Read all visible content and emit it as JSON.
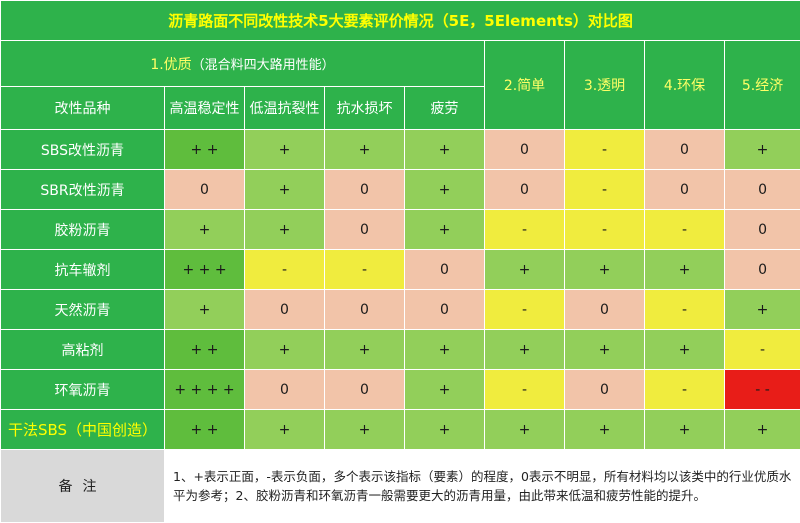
{
  "title": "沥青路面不同改性技术5大要素评价情况（5E，5Elements）对比图",
  "header": {
    "group_quality": "1.优质",
    "group_quality_sub": "（混合料四大路用性能）",
    "row_label": "改性品种",
    "cols": [
      "高温稳定性",
      "低温抗裂性",
      "抗水损坏",
      "疲劳"
    ],
    "simple": "2.简单",
    "transparent": "3.透明",
    "eco": "4.环保",
    "economy": "5.经济"
  },
  "rows": [
    {
      "name": "SBS改性沥青",
      "cells": [
        "+ +",
        "+",
        "+",
        "+",
        "0",
        "-",
        "0",
        "+"
      ]
    },
    {
      "name": "SBR改性沥青",
      "cells": [
        "0",
        "+",
        "0",
        "+",
        "0",
        "-",
        "0",
        "0"
      ]
    },
    {
      "name": "胶粉沥青",
      "cells": [
        "+",
        "+",
        "0",
        "+",
        "-",
        "-",
        "-",
        "0"
      ]
    },
    {
      "name": "抗车辙剂",
      "cells": [
        "+ + +",
        "-",
        "-",
        "0",
        "+",
        "+",
        "+",
        "0"
      ]
    },
    {
      "name": "天然沥青",
      "cells": [
        "+",
        "0",
        "0",
        "0",
        "-",
        "0",
        "-",
        "+"
      ]
    },
    {
      "name": "高粘剂",
      "cells": [
        "+ +",
        "+",
        "+",
        "+",
        "+",
        "+",
        "+",
        "-"
      ]
    },
    {
      "name": "环氧沥青",
      "cells": [
        "+ + + +",
        "0",
        "0",
        "+",
        "-",
        "0",
        "-",
        "- -"
      ]
    },
    {
      "name": "干法SBS（中国创造）",
      "cells": [
        "+ +",
        "+",
        "+",
        "+",
        "+",
        "+",
        "+",
        "+"
      ]
    }
  ],
  "colors": {
    "dark_green": "#5fbd3d",
    "light_green": "#92cf5a",
    "pink": "#f2c4a9",
    "yellow": "#f0ec3e",
    "red": "#e81d18",
    "header_green": "#2eb24b"
  },
  "note": {
    "label": "备注",
    "text": "1、+表示正面，-表示负面，多个表示该指标（要素）的程度，0表示不明显，所有材料均以该类中的行业优质水平为参考；2、胶粉沥青和环氧沥青一般需要更大的沥青用量，由此带来低温和疲劳性能的提升。"
  }
}
